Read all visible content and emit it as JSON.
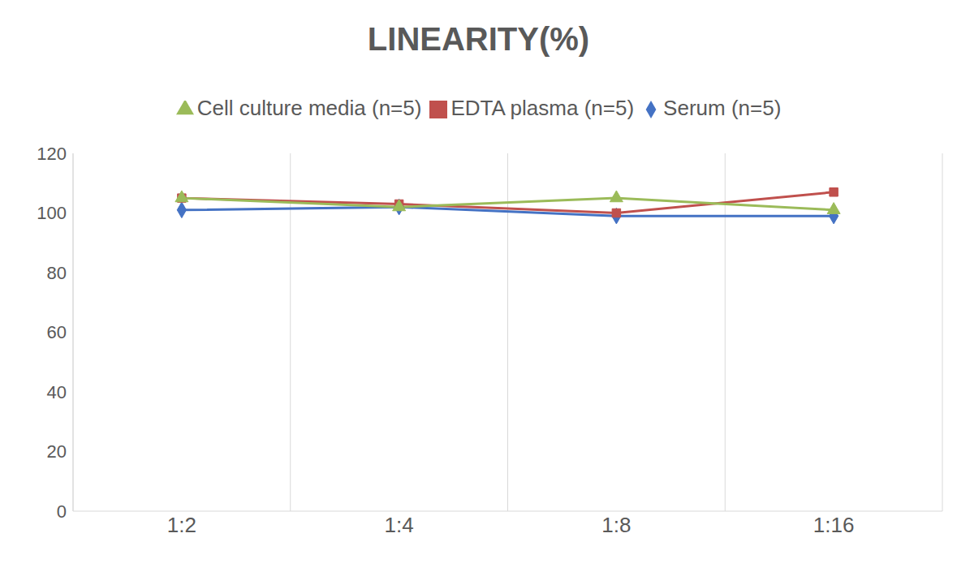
{
  "chart_data": {
    "type": "line",
    "title": "LINEARITY(%)",
    "categories": [
      "1:2",
      "1:4",
      "1:8",
      "1:16"
    ],
    "series": [
      {
        "name": "Serum (n=5)",
        "color": "#4472c4",
        "marker": "diamond",
        "values": [
          101,
          102,
          99,
          99
        ]
      },
      {
        "name": "EDTA plasma (n=5)",
        "color": "#c0504d",
        "marker": "square",
        "values": [
          105,
          103,
          100,
          107
        ]
      },
      {
        "name": "Cell culture media (n=5)",
        "color": "#9bbb59",
        "marker": "triangle",
        "values": [
          105,
          102,
          105,
          101
        ]
      }
    ],
    "ylim": [
      0,
      120
    ],
    "yticks": [
      0,
      20,
      40,
      60,
      80,
      100,
      120
    ],
    "grid": true
  }
}
